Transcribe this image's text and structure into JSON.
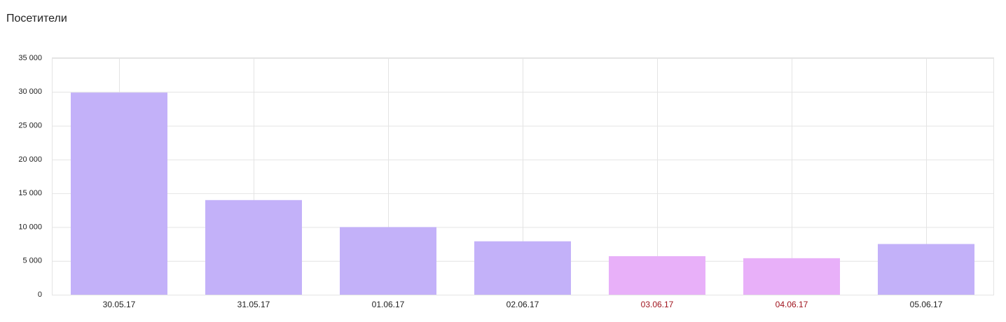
{
  "chart_data": {
    "type": "bar",
    "title": "Посетители",
    "categories": [
      "30.05.17",
      "31.05.17",
      "01.06.17",
      "02.06.17",
      "03.06.17",
      "04.06.17",
      "05.06.17"
    ],
    "values": [
      29900,
      14000,
      10000,
      7900,
      5700,
      5400,
      7500
    ],
    "colors": [
      "#c3b1f9",
      "#c3b1f9",
      "#c3b1f9",
      "#c3b1f9",
      "#e8b0f9",
      "#e8b0f9",
      "#c3b1f9"
    ],
    "label_colors": [
      "#222222",
      "#222222",
      "#222222",
      "#222222",
      "#a0141e",
      "#a0141e",
      "#222222"
    ],
    "ylim": [
      0,
      35000
    ],
    "yticks": [
      0,
      {
        "value": 5000,
        "label": "5 000"
      },
      {
        "value": 10000,
        "label": "10 000"
      },
      {
        "value": 15000,
        "label": "15 000"
      },
      {
        "value": 20000,
        "label": "20 000"
      },
      {
        "value": 25000,
        "label": "25 000"
      },
      {
        "value": 30000,
        "label": "30 000"
      },
      {
        "value": 35000,
        "label": "35 000"
      }
    ],
    "grid": true
  }
}
